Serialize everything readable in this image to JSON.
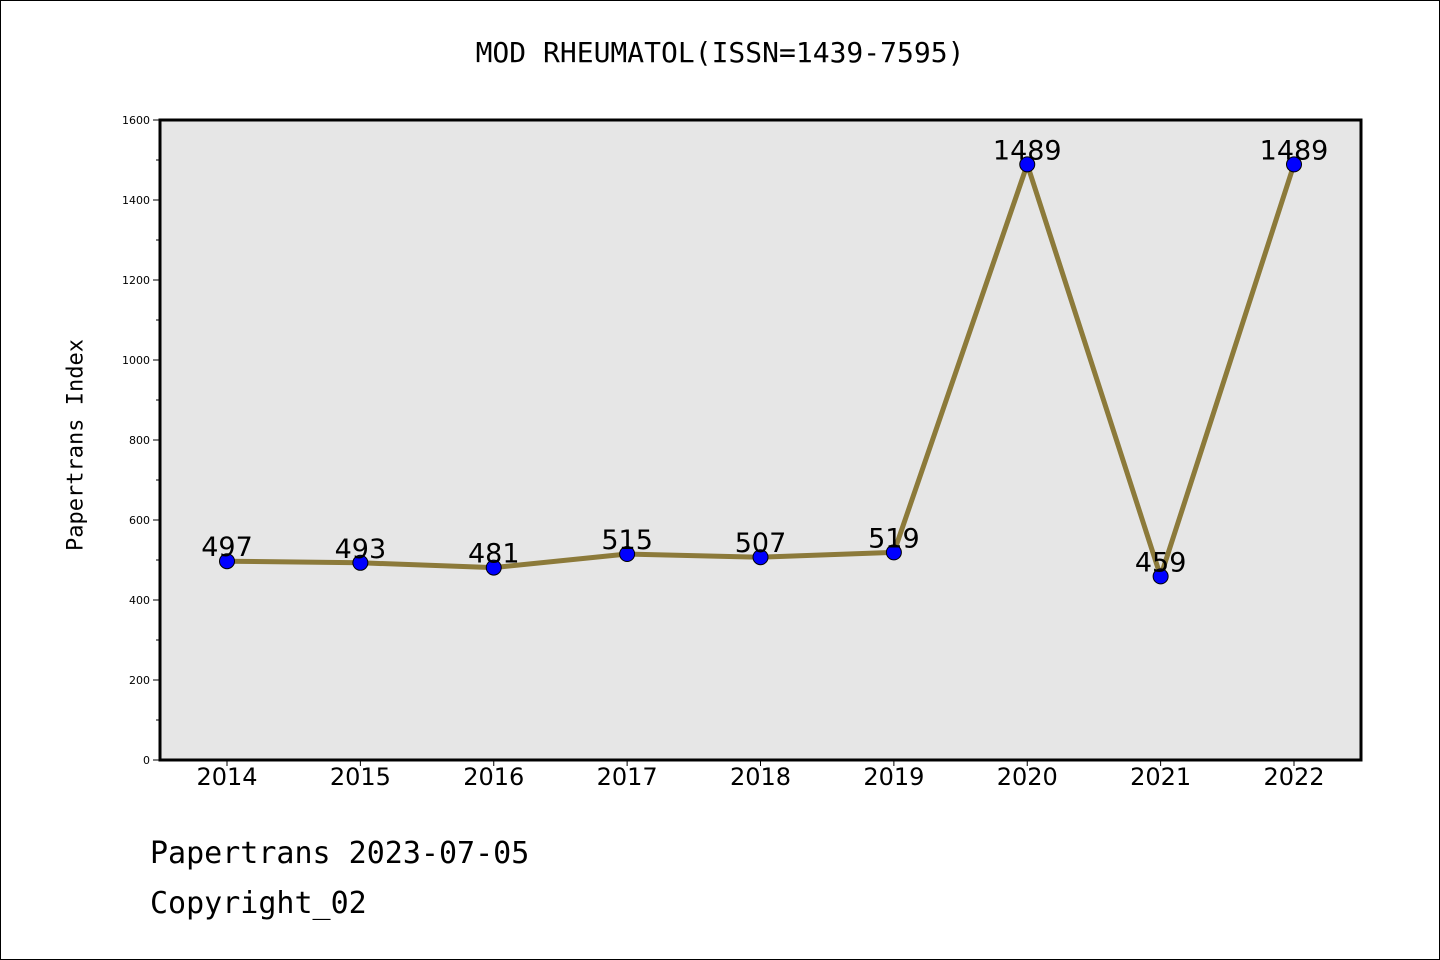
{
  "page": {
    "title": "MOD RHEUMATOL(ISSN=1439-7595)",
    "footer_line1": "Papertrans 2023-07-05",
    "footer_line2": "Copyright_02"
  },
  "chart_data": {
    "type": "line",
    "title": "MOD RHEUMATOL(ISSN=1439-7595)",
    "xlabel": "",
    "ylabel": "Papertrans Index",
    "categories": [
      "2014",
      "2015",
      "2016",
      "2017",
      "2018",
      "2019",
      "2020",
      "2021",
      "2022"
    ],
    "series": [
      {
        "values": [
          497,
          493,
          481,
          515,
          507,
          519,
          1489,
          459,
          1489
        ]
      }
    ],
    "ylim": [
      0,
      1600
    ],
    "yticks": [
      0,
      200,
      400,
      600,
      800,
      1000,
      1200,
      1400,
      1600
    ],
    "grid": false,
    "data_labels": true,
    "colors": {
      "line": "#8c7a3a",
      "marker": "#0000ff",
      "plot_background": "#e6e6e6",
      "axes_border": "#000000"
    }
  }
}
